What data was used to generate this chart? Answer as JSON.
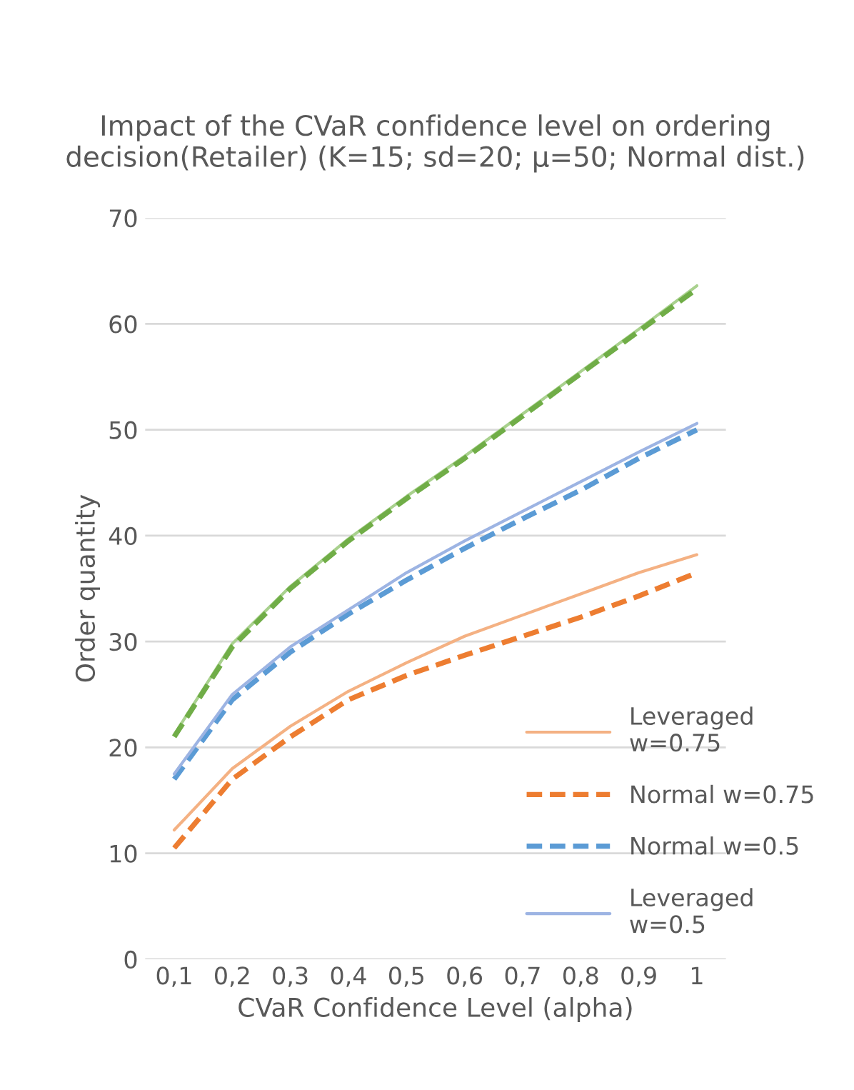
{
  "chart_data": {
    "type": "line",
    "title": "Impact of the CVaR confidence level on ordering decision(Retailer) (K=15; sd=20; μ=50; Normal dist.)",
    "xlabel": "CVaR Confidence Level (alpha)",
    "ylabel": "Order quantity",
    "categories": [
      "0,1",
      "0,2",
      "0,3",
      "0,4",
      "0,5",
      "0,6",
      "0,7",
      "0,8",
      "0,9",
      "1"
    ],
    "series": [
      {
        "color": "#a9d18e",
        "line_style": "solid",
        "values": [
          21.2,
          29.8,
          35.2,
          39.7,
          43.7,
          47.5,
          51.5,
          55.5,
          59.5,
          63.6
        ]
      },
      {
        "color": "#70ad47",
        "line_style": "dashed",
        "values": [
          21,
          29.5,
          35,
          39.5,
          43.5,
          47.3,
          51.3,
          55.3,
          59.3,
          63.3
        ]
      },
      {
        "name": "Leveraged w=0.75",
        "color": "#f4b183",
        "line_style": "solid",
        "values": [
          12.2,
          18,
          22,
          25.3,
          28,
          30.5,
          32.5,
          34.5,
          36.5,
          38.2
        ]
      },
      {
        "name": "Normal w=0.75",
        "color": "#ed7d31",
        "line_style": "dashed",
        "values": [
          10.5,
          17,
          21,
          24.5,
          26.8,
          28.7,
          30.5,
          32.3,
          34.3,
          36.5
        ]
      },
      {
        "name": "Normal w=0.5",
        "color": "#5b9bd5",
        "line_style": "dashed",
        "values": [
          17,
          24.5,
          29,
          32.6,
          35.8,
          38.8,
          41.6,
          44.3,
          47.3,
          50
        ]
      },
      {
        "name": "Leveraged w=0.5",
        "color": "#9db4e3",
        "line_style": "solid",
        "values": [
          17.5,
          25,
          29.5,
          33,
          36.5,
          39.5,
          42.3,
          45.1,
          47.9,
          50.6
        ]
      }
    ],
    "ylim": [
      0,
      70
    ],
    "yticks": [
      0,
      10,
      20,
      30,
      40,
      50,
      60,
      70
    ],
    "grid": "y",
    "legend": "bottom right"
  }
}
